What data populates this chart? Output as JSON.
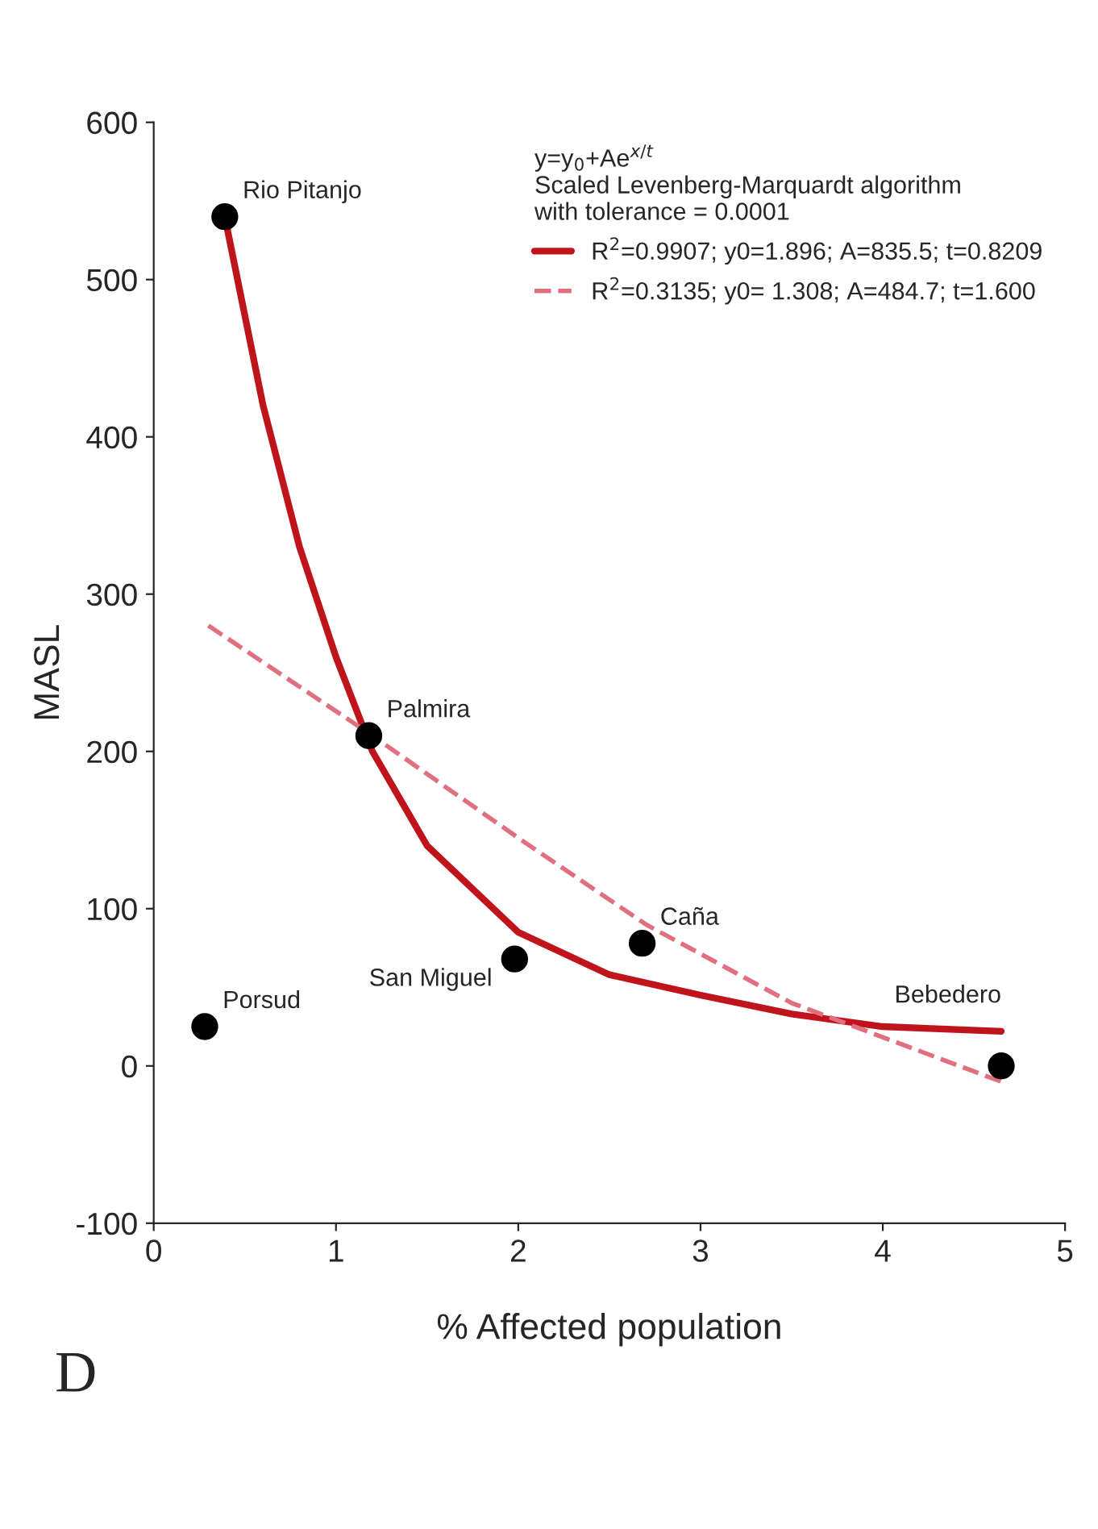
{
  "chart_data": {
    "type": "scatter",
    "xlabel": "% Affected population",
    "ylabel": "MASL",
    "legend_title": "y=y$_{0}$+Ae$^{x/t}$\nScaled Levenberg-Marquardt algorithm\nwith tolerance = 0.0001",
    "series": [
      {
        "color": "#000000",
        "marker": "circle",
        "x": [
          0.39,
          0.28,
          1.18,
          1.98,
          2.68,
          4.65
        ],
        "values": [
          540,
          25,
          210,
          68,
          78,
          0
        ]
      },
      {
        "type": "line",
        "name": "R$^{2}$=0.9907; y0=1.896; A=835.5; t=0.8209",
        "color": "#c0141c",
        "line_style": "solid",
        "x": [
          0.39,
          0.6,
          0.8,
          1.0,
          1.2,
          1.5,
          2.0,
          2.5,
          3.0,
          3.5,
          4.0,
          4.65
        ],
        "values": [
          540,
          420,
          330,
          260,
          200,
          140,
          85,
          58,
          45,
          33,
          25,
          22
        ]
      },
      {
        "type": "line",
        "name": "R$^{2}$=0.3135; y0= 1.308; A=484.7; t=1.600",
        "color": "#e07080",
        "line_style": "dashed",
        "x": [
          0.3,
          1.2,
          2.0,
          2.7,
          3.5,
          4.65
        ],
        "values": [
          280,
          210,
          145,
          90,
          40,
          -10
        ]
      }
    ],
    "annotations": [
      {
        "text": "Rio Pitanjo",
        "x": 0.39,
        "y": 540
      },
      {
        "text": "Porsud",
        "x": 0.28,
        "y": 25
      },
      {
        "text": "Palmira",
        "x": 1.18,
        "y": 210
      },
      {
        "text": "San Miguel",
        "x": 1.98,
        "y": 68
      },
      {
        "text": "Caña",
        "x": 2.68,
        "y": 78
      },
      {
        "text": "Bebedero",
        "x": 4.65,
        "y": 0
      },
      "D"
    ],
    "xlim": [
      0,
      5
    ],
    "ylim": [
      -100,
      600
    ],
    "xticks": [
      0,
      1,
      2,
      3,
      4,
      5
    ],
    "yticks": [
      -100,
      0,
      100,
      200,
      300,
      400,
      500,
      600
    ],
    "grid": false,
    "legend": "top right"
  }
}
